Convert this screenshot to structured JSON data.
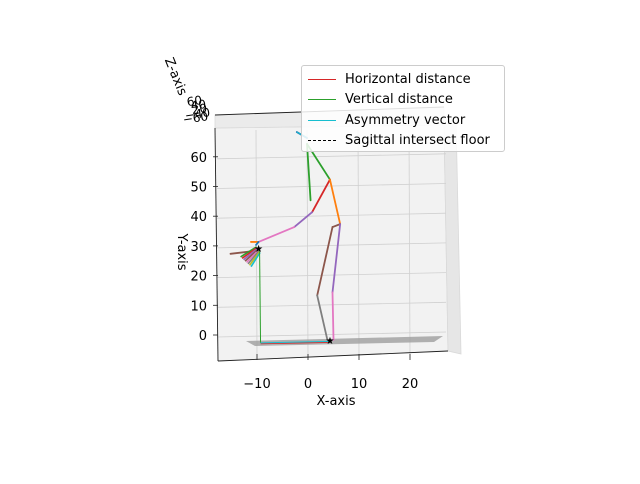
{
  "chart_data": {
    "type": "line3d",
    "xlabel": "X-axis",
    "ylabel": "Y-axis",
    "zlabel": "Z-axis",
    "x_ticks": [
      "−10",
      "0",
      "10",
      "20"
    ],
    "y_ticks": [
      "0",
      "10",
      "20",
      "30",
      "40",
      "50",
      "60"
    ],
    "z_ticks": [
      "−60",
      "−40",
      "20",
      "40",
      "60"
    ],
    "xlim": [
      -15,
      28
    ],
    "ylim": [
      -10,
      65
    ],
    "legend": {
      "placement": "upper-right",
      "entries": [
        {
          "label": "Horizontal distance",
          "color": "#d62728",
          "style": "solid"
        },
        {
          "label": "Vertical distance",
          "color": "#2ca02c",
          "style": "solid"
        },
        {
          "label": "Asymmetry vector",
          "color": "#17becf",
          "style": "solid"
        },
        {
          "label": "Sagittal intersect floor",
          "color": "#000000",
          "style": "dashed"
        }
      ]
    },
    "skeleton_segments": [
      {
        "color": "#1f77b4",
        "points": [
          [
            0,
            66
          ],
          [
            -2,
            68
          ]
        ]
      },
      {
        "color": "#2ca02c",
        "points": [
          [
            0,
            64
          ],
          [
            4.5,
            52
          ]
        ]
      },
      {
        "color": "#2ca02c",
        "points": [
          [
            0,
            64
          ],
          [
            0.7,
            45
          ]
        ]
      },
      {
        "color": "#d62728",
        "points": [
          [
            4.5,
            52
          ],
          [
            1,
            41
          ]
        ]
      },
      {
        "color": "#ff7f0e",
        "points": [
          [
            4.5,
            52
          ],
          [
            6.5,
            37
          ]
        ]
      },
      {
        "color": "#9467bd",
        "points": [
          [
            1,
            41
          ],
          [
            -2.5,
            36
          ]
        ]
      },
      {
        "color": "#e377c2",
        "points": [
          [
            -2.5,
            36
          ],
          [
            -9.5,
            31
          ]
        ]
      },
      {
        "color": "#8c564b",
        "points": [
          [
            6.5,
            37
          ],
          [
            5,
            36
          ]
        ]
      },
      {
        "color": "#8c564b",
        "points": [
          [
            5,
            36
          ],
          [
            2,
            13
          ]
        ]
      },
      {
        "color": "#9467bd",
        "points": [
          [
            6.5,
            37
          ],
          [
            5,
            14
          ]
        ]
      },
      {
        "color": "#7f7f7f",
        "points": [
          [
            2,
            13
          ],
          [
            4,
            -2
          ]
        ]
      },
      {
        "color": "#e377c2",
        "points": [
          [
            5,
            14
          ],
          [
            5.2,
            -2
          ]
        ]
      },
      {
        "color": "#8c564b",
        "points": [
          [
            -10,
            28
          ],
          [
            -15,
            27
          ]
        ]
      },
      {
        "color": "#ff7f0e",
        "points": [
          [
            -9.5,
            31
          ],
          [
            -11,
            31
          ]
        ]
      },
      {
        "color": "#1f77b4",
        "points": [
          [
            -9.5,
            31
          ],
          [
            -10,
            30
          ]
        ]
      }
    ],
    "markers": [
      {
        "symbol": "star",
        "x": -9.5,
        "y": 29
      },
      {
        "symbol": "star",
        "x": 4.5,
        "y": -2
      }
    ]
  }
}
